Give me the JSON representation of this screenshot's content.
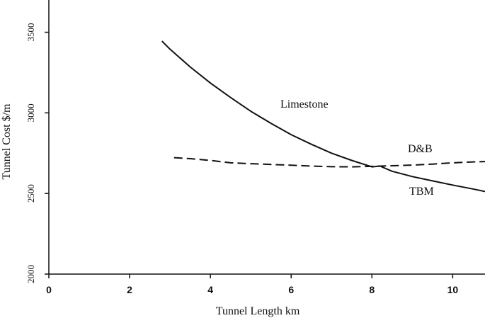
{
  "chart_data": {
    "type": "line",
    "title": "",
    "xlabel": "Tunnel Length km",
    "ylabel": "Tunnel Cost  $/m",
    "xlim": [
      0,
      10.8
    ],
    "ylim": [
      2000,
      3700
    ],
    "xticks": [
      0,
      2,
      4,
      6,
      8,
      10
    ],
    "yticks": [
      2000,
      2500,
      3000,
      3500
    ],
    "grid": false,
    "annotations": [
      "Limestone",
      "D&B",
      "TBM"
    ],
    "series": [
      {
        "name": "",
        "style": "solid",
        "x": [
          2.8,
          3.0,
          3.5,
          4.0,
          4.5,
          5.0,
          5.5,
          6.0,
          6.5,
          7.0,
          7.5,
          8.0,
          8.2,
          8.5,
          9.0,
          9.5,
          10.0,
          10.5,
          10.8
        ],
        "y": [
          3445,
          3395,
          3285,
          3185,
          3095,
          3010,
          2935,
          2865,
          2805,
          2750,
          2705,
          2665,
          2670,
          2638,
          2605,
          2578,
          2552,
          2528,
          2512
        ]
      },
      {
        "name": "",
        "style": "dashed",
        "x": [
          3.1,
          3.5,
          4.0,
          4.5,
          5.0,
          5.5,
          6.0,
          6.5,
          7.0,
          7.5,
          8.0,
          8.5,
          9.0,
          9.5,
          10.0,
          10.5,
          10.8
        ],
        "y": [
          2722,
          2716,
          2705,
          2690,
          2685,
          2680,
          2675,
          2670,
          2666,
          2665,
          2668,
          2672,
          2676,
          2682,
          2690,
          2696,
          2698
        ]
      }
    ]
  },
  "colors": {
    "line": "#111111",
    "axis": "#111111"
  }
}
